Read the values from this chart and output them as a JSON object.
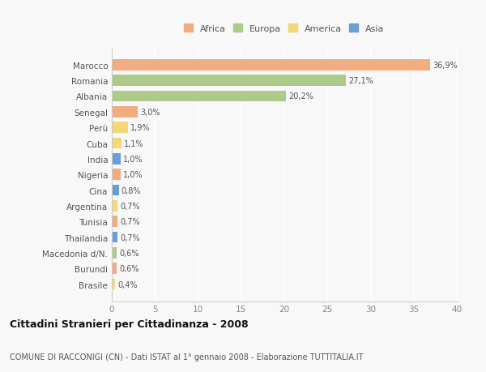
{
  "countries": [
    "Marocco",
    "Romania",
    "Albania",
    "Senegal",
    "Perù",
    "Cuba",
    "India",
    "Nigeria",
    "Cina",
    "Argentina",
    "Tunisia",
    "Thailandia",
    "Macedonia d/N.",
    "Burundi",
    "Brasile"
  ],
  "values": [
    36.9,
    27.1,
    20.2,
    3.0,
    1.9,
    1.1,
    1.0,
    1.0,
    0.8,
    0.7,
    0.7,
    0.7,
    0.6,
    0.6,
    0.4
  ],
  "labels": [
    "36,9%",
    "27,1%",
    "20,2%",
    "3,0%",
    "1,9%",
    "1,1%",
    "1,0%",
    "1,0%",
    "0,8%",
    "0,7%",
    "0,7%",
    "0,7%",
    "0,6%",
    "0,6%",
    "0,4%"
  ],
  "colors": [
    "#F2AC82",
    "#AECA8A",
    "#AECA8A",
    "#F2AC82",
    "#F2D878",
    "#F2D878",
    "#6B9ED4",
    "#F2AC82",
    "#6B9ED4",
    "#F2D878",
    "#F2AC82",
    "#6B9ED4",
    "#AECA8A",
    "#F2AC82",
    "#F2D878"
  ],
  "legend_labels": [
    "Africa",
    "Europa",
    "America",
    "Asia"
  ],
  "legend_colors": [
    "#F2AC82",
    "#AECA8A",
    "#F2D878",
    "#6B9ED4"
  ],
  "title": "Cittadini Stranieri per Cittadinanza - 2008",
  "subtitle": "COMUNE DI RACCONIGI (CN) - Dati ISTAT al 1° gennaio 2008 - Elaborazione TUTTITALIA.IT",
  "xlim": [
    0,
    40
  ],
  "xticks": [
    0,
    5,
    10,
    15,
    20,
    25,
    30,
    35,
    40
  ],
  "background_color": "#f8f8f8",
  "grid_color": "#ffffff",
  "bar_height": 0.7
}
